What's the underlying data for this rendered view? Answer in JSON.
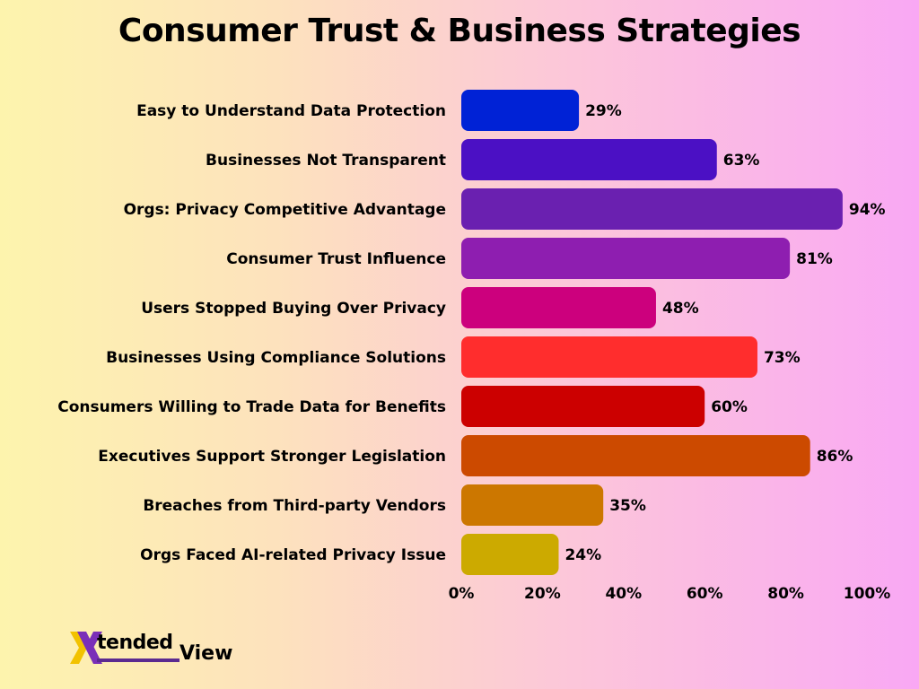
{
  "chart_data": {
    "type": "bar",
    "orientation": "horizontal",
    "title": "Consumer Trust & Business Strategies",
    "categories": [
      "Easy to Understand Data Protection",
      "Businesses Not Transparent",
      "Orgs: Privacy Competitive Advantage",
      "Consumer Trust Influence",
      "Users Stopped Buying Over Privacy",
      "Businesses Using Compliance Solutions",
      "Consumers Willing to Trade Data for Benefits",
      "Executives Support Stronger Legislation",
      "Breaches from Third-party Vendors",
      "Orgs Faced AI-related Privacy Issue"
    ],
    "values": [
      29,
      63,
      94,
      81,
      48,
      73,
      60,
      86,
      35,
      24
    ],
    "value_labels": [
      "29%",
      "63%",
      "94%",
      "81%",
      "48%",
      "73%",
      "60%",
      "86%",
      "35%",
      "24%"
    ],
    "colors": [
      "#0022d6",
      "#4b10c4",
      "#6a20b0",
      "#8e1eb0",
      "#cc007d",
      "#ff2d2d",
      "#cc0000",
      "#cc4a00",
      "#cc7700",
      "#ccaa00"
    ],
    "xlim": [
      0,
      100
    ],
    "xticks": [
      "0%",
      "20%",
      "40%",
      "60%",
      "80%",
      "100%"
    ],
    "xlabel": "",
    "ylabel": "",
    "grid": false,
    "legend": "none"
  },
  "brand": {
    "logo_text_1": "tended",
    "logo_text_2": "View",
    "accent_purple": "#7a2fb8",
    "accent_yellow": "#f2c200"
  }
}
